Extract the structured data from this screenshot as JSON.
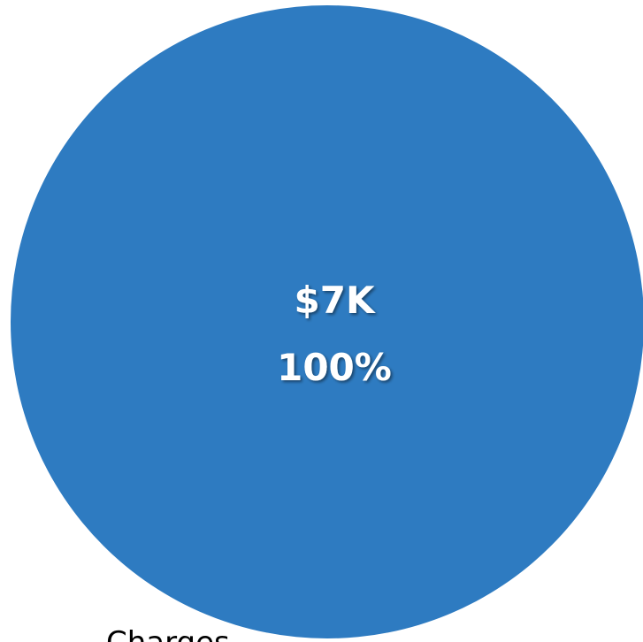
{
  "chart_data": {
    "type": "pie",
    "categories": [
      "Charges"
    ],
    "values": [
      7000
    ],
    "data_labels": [
      {
        "value_text": "$7K",
        "percent_text": "100%"
      }
    ],
    "colors": [
      "#2e7bc1"
    ],
    "title": "",
    "legend": {
      "placement": "bottom-left",
      "entries": [
        "Charges"
      ]
    }
  }
}
